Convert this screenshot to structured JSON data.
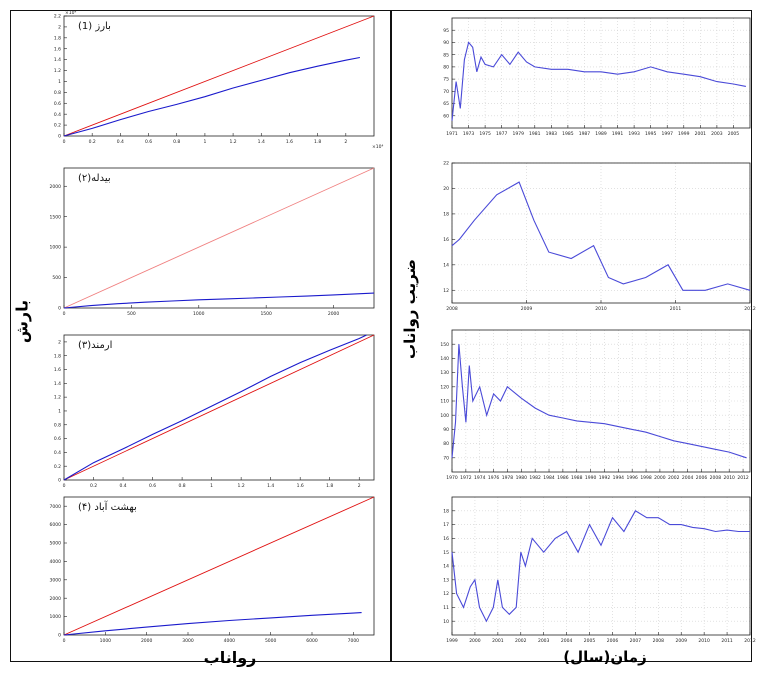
{
  "labels": {
    "left_x": "رواناب",
    "left_y": "بارش",
    "right_x": "زمان(سال)",
    "right_y": "ضریب رواناب"
  },
  "chart_data": [
    {
      "id": "p1",
      "type": "line",
      "title": "بارز (1)",
      "xlim": [
        0,
        2.2
      ],
      "ylim": [
        0,
        2.2
      ],
      "xticks": [
        "0",
        "0.2",
        "0.4",
        "0.6",
        "0.8",
        "1",
        "1.2",
        "1.4",
        "1.6",
        "1.8",
        "2"
      ],
      "xtick_vals": [
        0,
        0.2,
        0.4,
        0.6,
        0.8,
        1,
        1.2,
        1.4,
        1.6,
        1.8,
        2
      ],
      "yticks": [
        "0",
        "0.2",
        "0.4",
        "0.6",
        "0.8",
        "1",
        "1.2",
        "1.4",
        "1.6",
        "1.8",
        "2",
        "2.2"
      ],
      "ytick_vals": [
        0,
        0.2,
        0.4,
        0.6,
        0.8,
        1,
        1.2,
        1.4,
        1.6,
        1.8,
        2,
        2.2
      ],
      "exponent_label": "×10⁴",
      "series": [
        {
          "color": "#e01010",
          "x": [
            0,
            2.2
          ],
          "y": [
            0,
            2.2
          ]
        },
        {
          "color": "#1a1acc",
          "x": [
            0,
            0.2,
            0.4,
            0.6,
            0.8,
            1,
            1.2,
            1.4,
            1.6,
            1.8,
            2,
            2.1
          ],
          "y": [
            0,
            0.14,
            0.3,
            0.45,
            0.58,
            0.72,
            0.88,
            1.02,
            1.16,
            1.28,
            1.39,
            1.44
          ]
        }
      ]
    },
    {
      "id": "p2",
      "type": "line",
      "title": "بیدله(۲)",
      "xlim": [
        0,
        2300
      ],
      "ylim": [
        0,
        2300
      ],
      "xticks": [
        "0",
        "500",
        "1000",
        "1500",
        "2000"
      ],
      "xtick_vals": [
        0,
        500,
        1000,
        1500,
        2000
      ],
      "yticks": [
        "0",
        "500",
        "1000",
        "1500",
        "2000"
      ],
      "ytick_vals": [
        0,
        500,
        1000,
        1500,
        2000
      ],
      "exponent_label": "",
      "series": [
        {
          "color": "#f08080",
          "x": [
            0,
            2300
          ],
          "y": [
            0,
            2300
          ]
        },
        {
          "color": "#1a1acc",
          "x": [
            0,
            200,
            400,
            600,
            800,
            1000,
            1200,
            1400,
            1600,
            1800,
            2000,
            2200,
            2300
          ],
          "y": [
            0,
            40,
            70,
            95,
            115,
            135,
            150,
            165,
            180,
            195,
            215,
            235,
            245
          ]
        }
      ]
    },
    {
      "id": "p3",
      "type": "line",
      "title": "ارمند(۳)",
      "xlim": [
        0,
        2.1
      ],
      "ylim": [
        0,
        2.1
      ],
      "xticks": [
        "0",
        "0.2",
        "0.4",
        "0.6",
        "0.8",
        "1",
        "1.2",
        "1.4",
        "1.6",
        "1.8",
        "2"
      ],
      "xtick_vals": [
        0,
        0.2,
        0.4,
        0.6,
        0.8,
        1,
        1.2,
        1.4,
        1.6,
        1.8,
        2
      ],
      "yticks": [
        "0",
        "0.2",
        "0.4",
        "0.6",
        "0.8",
        "1",
        "1.2",
        "1.4",
        "1.6",
        "1.8",
        "2"
      ],
      "ytick_vals": [
        0,
        0.2,
        0.4,
        0.6,
        0.8,
        1,
        1.2,
        1.4,
        1.6,
        1.8,
        2
      ],
      "exponent_label": "",
      "series": [
        {
          "color": "#e01010",
          "x": [
            0,
            2.1
          ],
          "y": [
            0,
            2.1
          ]
        },
        {
          "color": "#1a1acc",
          "x": [
            0,
            0.2,
            0.4,
            0.6,
            0.8,
            1,
            1.2,
            1.4,
            1.6,
            1.8,
            2,
            2.05
          ],
          "y": [
            0,
            0.25,
            0.45,
            0.66,
            0.86,
            1.07,
            1.28,
            1.5,
            1.7,
            1.88,
            2.05,
            2.1
          ]
        }
      ]
    },
    {
      "id": "p4",
      "type": "line",
      "title": "بهشت آباد (۴)",
      "xlim": [
        0,
        7500
      ],
      "ylim": [
        0,
        7500
      ],
      "xticks": [
        "0",
        "1000",
        "2000",
        "3000",
        "4000",
        "5000",
        "6000",
        "7000"
      ],
      "xtick_vals": [
        0,
        1000,
        2000,
        3000,
        4000,
        5000,
        6000,
        7000
      ],
      "yticks": [
        "0",
        "1000",
        "2000",
        "3000",
        "4000",
        "5000",
        "6000",
        "7000"
      ],
      "ytick_vals": [
        0,
        1000,
        2000,
        3000,
        4000,
        5000,
        6000,
        7000
      ],
      "exponent_label": "",
      "series": [
        {
          "color": "#e01010",
          "x": [
            0,
            7500
          ],
          "y": [
            0,
            7500
          ]
        },
        {
          "color": "#1a1acc",
          "x": [
            0,
            1000,
            2000,
            3000,
            4000,
            5000,
            6000,
            7000,
            7200
          ],
          "y": [
            0,
            230,
            430,
            620,
            790,
            930,
            1070,
            1190,
            1220
          ]
        }
      ]
    },
    {
      "id": "r1",
      "type": "line",
      "title": "",
      "xlim": [
        1971,
        2007
      ],
      "ylim": [
        55,
        100
      ],
      "xticks": [
        "1971",
        "1973",
        "1975",
        "1977",
        "1979",
        "1981",
        "1983",
        "1985",
        "1987",
        "1989",
        "1991",
        "1993",
        "1995",
        "1997",
        "1999",
        "2001",
        "2003",
        "2005"
      ],
      "xtick_vals": [
        1971,
        1973,
        1975,
        1977,
        1979,
        1981,
        1983,
        1985,
        1987,
        1989,
        1991,
        1993,
        1995,
        1997,
        1999,
        2001,
        2003,
        2005
      ],
      "yticks": [
        "60",
        "65",
        "70",
        "75",
        "80",
        "85",
        "90",
        "95"
      ],
      "ytick_vals": [
        60,
        65,
        70,
        75,
        80,
        85,
        90,
        95
      ],
      "exponent_label": "",
      "series": [
        {
          "color": "#4a4ad8",
          "x": [
            1971,
            1971.5,
            1972,
            1972.5,
            1973,
            1973.5,
            1974,
            1974.5,
            1975,
            1976,
            1977,
            1978,
            1979,
            1980,
            1981,
            1983,
            1985,
            1987,
            1989,
            1991,
            1993,
            1995,
            1997,
            1999,
            2001,
            2003,
            2005,
            2006.5
          ],
          "y": [
            58,
            74,
            63,
            83,
            90,
            88,
            78,
            84,
            81,
            80,
            85,
            81,
            86,
            82,
            80,
            79,
            79,
            78,
            78,
            77,
            78,
            80,
            78,
            77,
            76,
            74,
            73,
            72
          ]
        }
      ]
    },
    {
      "id": "r2",
      "type": "line",
      "title": "",
      "xlim": [
        2008,
        2012
      ],
      "ylim": [
        11,
        22
      ],
      "xticks": [
        "2008",
        "2009",
        "2010",
        "2011",
        "2012"
      ],
      "xtick_vals": [
        2008,
        2009,
        2010,
        2011,
        2012
      ],
      "yticks": [
        "12",
        "14",
        "16",
        "18",
        "20",
        "22"
      ],
      "ytick_vals": [
        12,
        14,
        16,
        18,
        20,
        22
      ],
      "exponent_label": "",
      "series": [
        {
          "color": "#4a4ad8",
          "x": [
            2008,
            2008.1,
            2008.3,
            2008.6,
            2008.9,
            2009.1,
            2009.3,
            2009.6,
            2009.9,
            2010.1,
            2010.3,
            2010.6,
            2010.9,
            2011.1,
            2011.4,
            2011.7,
            2012
          ],
          "y": [
            15.5,
            16,
            17.5,
            19.5,
            20.5,
            17.5,
            15,
            14.5,
            15.5,
            13,
            12.5,
            13,
            14,
            12,
            12,
            12.5,
            12
          ]
        }
      ]
    },
    {
      "id": "r3",
      "type": "line",
      "title": "",
      "xlim": [
        1970,
        2013
      ],
      "ylim": [
        60,
        160
      ],
      "xticks": [
        "1970",
        "1972",
        "1974",
        "1976",
        "1978",
        "1980",
        "1982",
        "1984",
        "1986",
        "1988",
        "1990",
        "1992",
        "1994",
        "1996",
        "1998",
        "2000",
        "2002",
        "2004",
        "2006",
        "2008",
        "2010",
        "2012"
      ],
      "xtick_vals": [
        1970,
        1972,
        1974,
        1976,
        1978,
        1980,
        1982,
        1984,
        1986,
        1988,
        1990,
        1992,
        1994,
        1996,
        1998,
        2000,
        2002,
        2004,
        2006,
        2008,
        2010,
        2012
      ],
      "yticks": [
        "70",
        "80",
        "90",
        "100",
        "110",
        "120",
        "130",
        "140",
        "150"
      ],
      "ytick_vals": [
        70,
        80,
        90,
        100,
        110,
        120,
        130,
        140,
        150
      ],
      "exponent_label": "",
      "series": [
        {
          "color": "#4a4ad8",
          "x": [
            1970,
            1970.5,
            1971,
            1971.5,
            1972,
            1972.5,
            1973,
            1974,
            1975,
            1976,
            1977,
            1978,
            1980,
            1982,
            1984,
            1986,
            1988,
            1990,
            1992,
            1994,
            1996,
            1998,
            2000,
            2002,
            2004,
            2006,
            2008,
            2010,
            2012.5
          ],
          "y": [
            70,
            95,
            150,
            120,
            95,
            135,
            110,
            120,
            100,
            115,
            110,
            120,
            112,
            105,
            100,
            98,
            96,
            95,
            94,
            92,
            90,
            88,
            85,
            82,
            80,
            78,
            76,
            74,
            70
          ]
        }
      ]
    },
    {
      "id": "r4",
      "type": "line",
      "title": "",
      "xlim": [
        1999,
        2012
      ],
      "ylim": [
        9,
        19
      ],
      "xticks": [
        "1999",
        "2000",
        "2001",
        "2002",
        "2003",
        "2004",
        "2005",
        "2006",
        "2007",
        "2008",
        "2009",
        "2010",
        "2011",
        "2012"
      ],
      "xtick_vals": [
        1999,
        2000,
        2001,
        2002,
        2003,
        2004,
        2005,
        2006,
        2007,
        2008,
        2009,
        2010,
        2011,
        2012
      ],
      "yticks": [
        "10",
        "11",
        "12",
        "13",
        "14",
        "15",
        "16",
        "17",
        "18"
      ],
      "ytick_vals": [
        10,
        11,
        12,
        13,
        14,
        15,
        16,
        17,
        18
      ],
      "exponent_label": "",
      "series": [
        {
          "color": "#4a4ad8",
          "x": [
            1999,
            1999.2,
            1999.5,
            1999.8,
            2000,
            2000.2,
            2000.5,
            2000.8,
            2001,
            2001.2,
            2001.5,
            2001.8,
            2002,
            2002.2,
            2002.5,
            2003,
            2003.5,
            2004,
            2004.5,
            2005,
            2005.5,
            2006,
            2006.5,
            2007,
            2007.5,
            2008,
            2008.5,
            2009,
            2009.5,
            2010,
            2010.5,
            2011,
            2011.5,
            2012
          ],
          "y": [
            15,
            12,
            11,
            12.5,
            13,
            11,
            10,
            11,
            13,
            11,
            10.5,
            11,
            15,
            14,
            16,
            15,
            16,
            16.5,
            15,
            17,
            15.5,
            17.5,
            16.5,
            18,
            17.5,
            17.5,
            17,
            17,
            16.8,
            16.7,
            16.5,
            16.6,
            16.5,
            16.5
          ]
        }
      ]
    }
  ]
}
